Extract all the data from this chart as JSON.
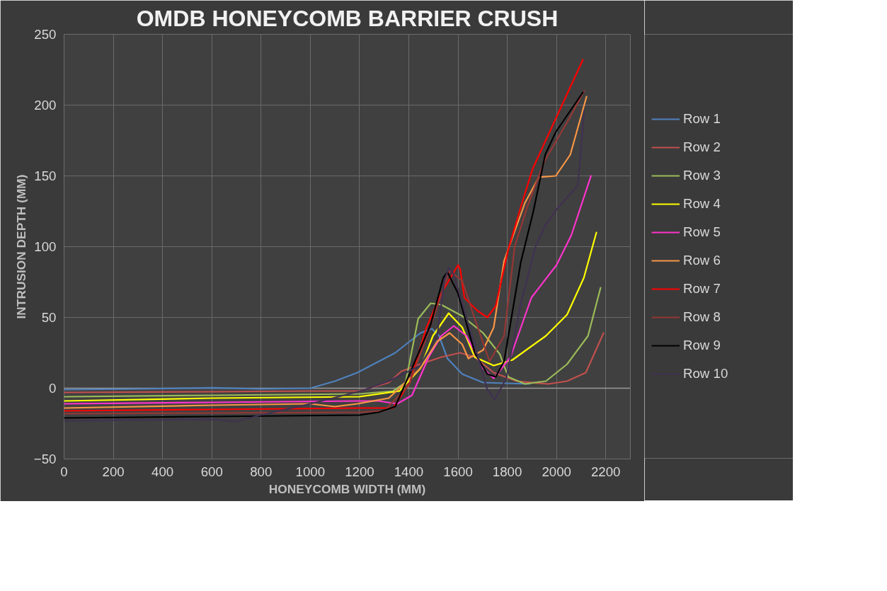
{
  "chart_data": {
    "type": "line",
    "title": "OMDB HONEYCOMB BARRIER CRUSH",
    "xlabel": "HONEYCOMB WIDTH (MM)",
    "ylabel": "INTRUSION DEPTH (MM)",
    "xlim": [
      0,
      2300
    ],
    "ylim": [
      -50,
      250
    ],
    "xticks": [
      0,
      200,
      400,
      600,
      800,
      1000,
      1200,
      1400,
      1600,
      1800,
      2000,
      2200
    ],
    "yticks": [
      -50,
      0,
      50,
      100,
      150,
      200,
      250
    ],
    "grid": true,
    "legend": "right",
    "marker": "none",
    "line_style": "solid",
    "series": [
      {
        "name": "Row 1",
        "color": "#4f81bd",
        "x": [
          0,
          300,
          600,
          800,
          1000,
          1100,
          1191,
          1345,
          1447,
          1494,
          1523,
          1557,
          1617,
          1702,
          1889
        ],
        "values": [
          -1,
          -0.5,
          0.3,
          -0.5,
          0,
          5,
          11,
          25,
          39,
          42,
          37,
          21,
          10,
          4,
          3
        ]
      },
      {
        "name": "Row 2",
        "color": "#c0504d",
        "x": [
          0,
          600,
          1000,
          1200,
          1319,
          1370,
          1447,
          1532,
          1608,
          1668,
          1745,
          1838,
          1966,
          2043,
          2119,
          2191
        ],
        "values": [
          -3,
          -2.5,
          -2,
          -2,
          4,
          12,
          17,
          22,
          25,
          22,
          11,
          5,
          3,
          5,
          11,
          39
        ]
      },
      {
        "name": "Row 3",
        "color": "#9bbb59",
        "x": [
          0,
          600,
          1200,
          1336,
          1387,
          1438,
          1489,
          1532,
          1617,
          1702,
          1770,
          1804,
          1872,
          1957,
          2043,
          2128,
          2179
        ],
        "values": [
          -6,
          -5,
          -4,
          -2,
          4,
          49,
          60,
          59,
          51,
          39,
          24,
          8,
          3,
          5,
          17,
          37,
          71
        ]
      },
      {
        "name": "Row 4",
        "color": "#ffff00",
        "x": [
          0,
          600,
          1200,
          1362,
          1447,
          1498,
          1562,
          1617,
          1668,
          1745,
          1821,
          1957,
          2043,
          2111,
          2162
        ],
        "values": [
          -9,
          -7,
          -6,
          -2,
          14,
          37,
          53,
          43,
          22,
          16,
          20,
          37,
          52,
          78,
          110
        ]
      },
      {
        "name": "Row 5",
        "color": "#ff33cc",
        "x": [
          0,
          600,
          1200,
          1277,
          1353,
          1413,
          1481,
          1532,
          1583,
          1634,
          1702,
          1745,
          1813,
          1898,
          2000,
          2060,
          2140
        ],
        "values": [
          -11,
          -10,
          -9,
          -9,
          -11,
          -5,
          22,
          37,
          44,
          37,
          14,
          7,
          22,
          64,
          87,
          108,
          150
        ]
      },
      {
        "name": "Row 6",
        "color": "#f79646",
        "x": [
          0,
          600,
          1000,
          1100,
          1191,
          1319,
          1447,
          1515,
          1566,
          1617,
          1642,
          1702,
          1745,
          1787,
          1872,
          1928,
          1997,
          2056,
          2122
        ],
        "values": [
          -14,
          -12,
          -11,
          -13,
          -11,
          -7,
          14,
          33,
          39,
          31,
          21,
          27,
          43,
          90,
          131,
          149,
          150,
          165,
          206
        ]
      },
      {
        "name": "Row 7",
        "color": "#ff0000",
        "x": [
          0,
          600,
          1200,
          1336,
          1404,
          1472,
          1532,
          1600,
          1609,
          1626,
          1677,
          1719,
          1753,
          1804,
          1855,
          1903,
          2107
        ],
        "values": [
          -16,
          -15,
          -14,
          -14,
          4,
          43,
          67,
          87,
          84,
          64,
          55,
          50,
          58,
          98,
          128,
          155,
          232
        ]
      },
      {
        "name": "Row 8",
        "color": "#953735",
        "x": [
          0,
          600,
          1200,
          1300,
          1400,
          1480,
          1566,
          1617,
          1668,
          1728,
          1787,
          1830,
          1881,
          1950,
          2050,
          2112
        ],
        "values": [
          -18,
          -17.5,
          -17,
          -16,
          2,
          40,
          83,
          76,
          49,
          19,
          37,
          100,
          128,
          160,
          190,
          210
        ]
      },
      {
        "name": "Row 9",
        "color": "#000000",
        "x": [
          0,
          600,
          1200,
          1277,
          1345,
          1413,
          1489,
          1540,
          1557,
          1600,
          1668,
          1719,
          1753,
          1787,
          1855,
          1906,
          1954,
          1997,
          2107
        ],
        "values": [
          -21,
          -20,
          -19,
          -17,
          -13,
          14,
          45,
          78,
          82,
          67,
          25,
          10,
          8,
          19,
          89,
          125,
          165,
          181,
          209
        ]
      },
      {
        "name": "Row 10",
        "color": "#403151",
        "x": [
          0,
          600,
          700,
          797,
          1000,
          1205,
          1319,
          1447,
          1515,
          1545,
          1562,
          1580,
          1600,
          1668,
          1719,
          1749,
          1796,
          1855,
          1915,
          1954,
          2008,
          2087,
          2112
        ],
        "values": [
          -23,
          -22,
          -23.5,
          -19,
          -11,
          -2,
          5,
          16,
          37,
          76,
          85,
          81,
          70,
          30,
          -1,
          -8,
          7,
          60,
          100,
          115,
          128,
          143,
          196
        ]
      }
    ]
  }
}
